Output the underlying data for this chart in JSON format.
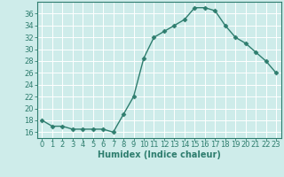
{
  "x": [
    0,
    1,
    2,
    3,
    4,
    5,
    6,
    7,
    8,
    9,
    10,
    11,
    12,
    13,
    14,
    15,
    16,
    17,
    18,
    19,
    20,
    21,
    22,
    23
  ],
  "y": [
    18,
    17,
    17,
    16.5,
    16.5,
    16.5,
    16.5,
    16,
    19,
    22,
    28.5,
    32,
    33,
    34,
    35,
    37,
    37,
    36.5,
    34,
    32,
    31,
    29.5,
    28,
    26
  ],
  "line_color": "#2e7d6e",
  "marker": "D",
  "marker_size": 2.5,
  "bg_color": "#ceecea",
  "grid_color": "#ffffff",
  "xlabel": "Humidex (Indice chaleur)",
  "xlabel_fontsize": 7,
  "ylim": [
    15,
    38
  ],
  "xlim": [
    -0.5,
    23.5
  ],
  "yticks": [
    16,
    18,
    20,
    22,
    24,
    26,
    28,
    30,
    32,
    34,
    36
  ],
  "xticks": [
    0,
    1,
    2,
    3,
    4,
    5,
    6,
    7,
    8,
    9,
    10,
    11,
    12,
    13,
    14,
    15,
    16,
    17,
    18,
    19,
    20,
    21,
    22,
    23
  ],
  "tick_label_fontsize": 6,
  "tick_color": "#2e7d6e",
  "spine_color": "#2e7d6e",
  "linewidth": 1.0
}
